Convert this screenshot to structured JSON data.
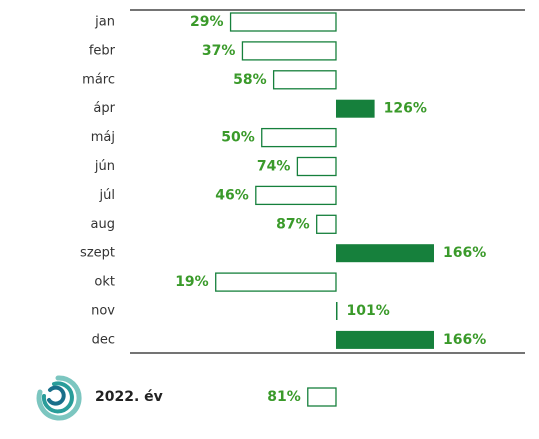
{
  "chart_data": {
    "type": "bar",
    "categories": [
      "jan",
      "febr",
      "márc",
      "ápr",
      "máj",
      "jún",
      "júl",
      "aug",
      "szept",
      "okt",
      "nov",
      "dec"
    ],
    "values": [
      29,
      37,
      58,
      126,
      50,
      74,
      46,
      87,
      166,
      19,
      101,
      166
    ],
    "value_labels": [
      "29%",
      "37%",
      "58%",
      "126%",
      "50%",
      "74%",
      "46%",
      "87%",
      "166%",
      "19%",
      "101%",
      "166%"
    ],
    "xlim": [
      0,
      232
    ],
    "baseline": 100,
    "color": "#16803c",
    "summary": {
      "label": "2022. év",
      "value": 81,
      "value_label": "81%"
    }
  }
}
